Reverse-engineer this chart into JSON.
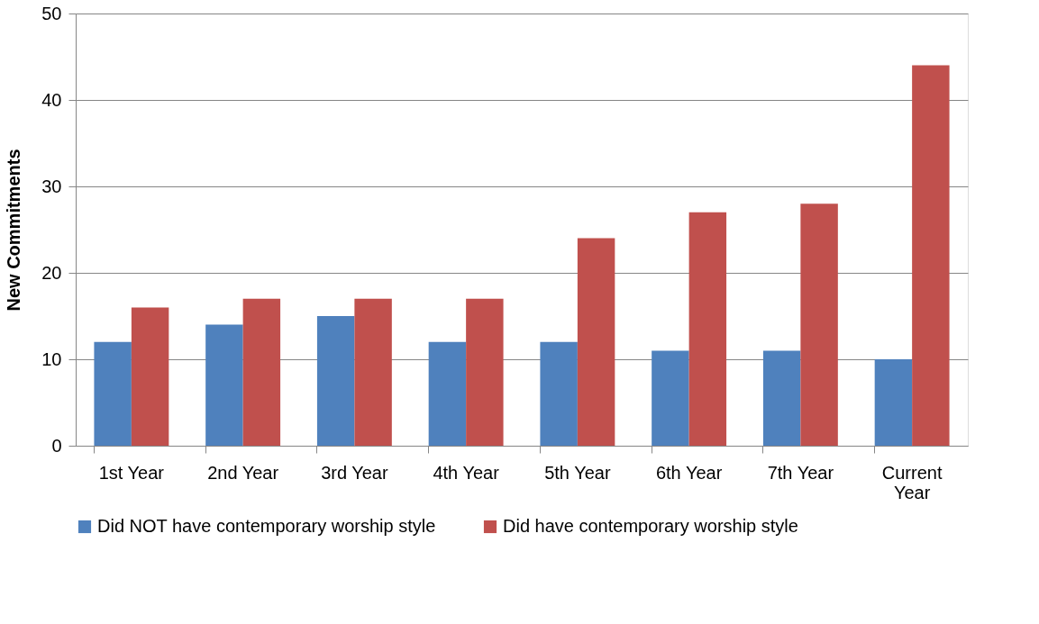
{
  "chart_data": {
    "type": "bar",
    "ylabel": "New Commitments",
    "categories": [
      "1st Year",
      "2nd Year",
      "3rd Year",
      "4th Year",
      "5th Year",
      "6th Year",
      "7th Year",
      "Current Year"
    ],
    "series": [
      {
        "name": "Did NOT have contemporary worship style",
        "color": "#4f81bd",
        "values": [
          12,
          14,
          15,
          12,
          12,
          11,
          11,
          10
        ]
      },
      {
        "name": "Did have contemporary worship style",
        "color": "#c0504d",
        "values": [
          16,
          17,
          17,
          17,
          24,
          27,
          28,
          44
        ]
      }
    ],
    "ylim": [
      0,
      50
    ],
    "yticks": [
      0,
      10,
      20,
      30,
      40,
      50
    ],
    "grid": "y",
    "legend": "bottom"
  }
}
